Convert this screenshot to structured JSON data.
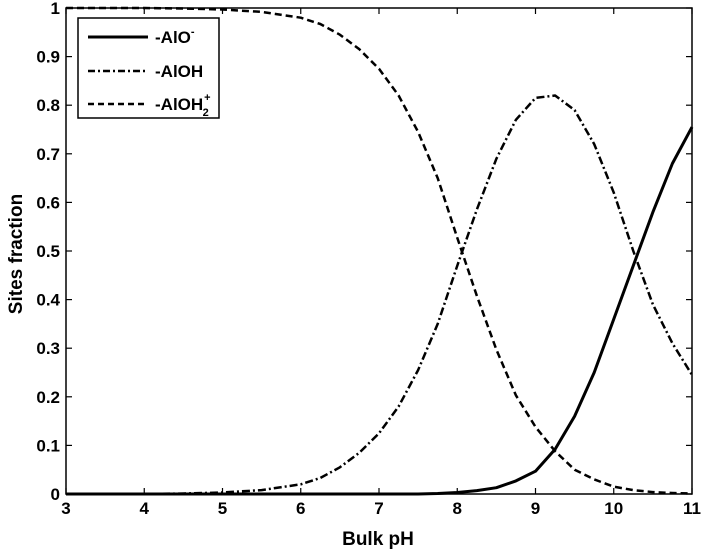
{
  "chart_data": {
    "type": "line",
    "xlabel": "Bulk pH",
    "ylabel": "Sites fraction",
    "xlim": [
      3,
      11
    ],
    "ylim": [
      0,
      1
    ],
    "x_ticks": [
      "3",
      "4",
      "5",
      "6",
      "7",
      "8",
      "9",
      "10",
      "11"
    ],
    "y_ticks": [
      "0",
      "0.1",
      "0.2",
      "0.3",
      "0.4",
      "0.5",
      "0.6",
      "0.7",
      "0.8",
      "0.9",
      "1"
    ],
    "grid": false,
    "legend_position": "top-left",
    "legend": [
      {
        "base": "-AlO",
        "sup": "-",
        "sub": "",
        "style": "solid"
      },
      {
        "base": "-AlOH",
        "sup": "",
        "sub": "",
        "style": "dashdot"
      },
      {
        "base": "-AlOH",
        "sup": "+",
        "sub": "2",
        "style": "dashed"
      }
    ],
    "x": [
      3,
      3.5,
      4,
      4.5,
      5,
      5.5,
      6,
      6.25,
      6.5,
      6.75,
      7,
      7.25,
      7.5,
      7.75,
      8,
      8.25,
      8.5,
      8.75,
      9,
      9.25,
      9.5,
      9.75,
      10,
      10.25,
      10.5,
      10.75,
      11
    ],
    "series": [
      {
        "style": "solid",
        "values": [
          0,
          0,
          0,
          0,
          0,
          0,
          0,
          0,
          0,
          0,
          0,
          0,
          0,
          0.001,
          0.003,
          0.007,
          0.013,
          0.027,
          0.047,
          0.092,
          0.16,
          0.25,
          0.36,
          0.47,
          0.58,
          0.68,
          0.755
        ]
      },
      {
        "style": "dashdot",
        "values": [
          0,
          0,
          0,
          0.001,
          0.003,
          0.008,
          0.02,
          0.033,
          0.055,
          0.085,
          0.125,
          0.18,
          0.255,
          0.35,
          0.47,
          0.585,
          0.69,
          0.77,
          0.815,
          0.82,
          0.79,
          0.72,
          0.62,
          0.5,
          0.39,
          0.31,
          0.245
        ]
      },
      {
        "style": "dashed",
        "values": [
          1,
          1,
          1,
          0.999,
          0.997,
          0.992,
          0.98,
          0.967,
          0.945,
          0.915,
          0.875,
          0.82,
          0.745,
          0.65,
          0.527,
          0.408,
          0.297,
          0.203,
          0.138,
          0.088,
          0.05,
          0.03,
          0.015,
          0.008,
          0.004,
          0.002,
          0.001
        ]
      }
    ]
  }
}
